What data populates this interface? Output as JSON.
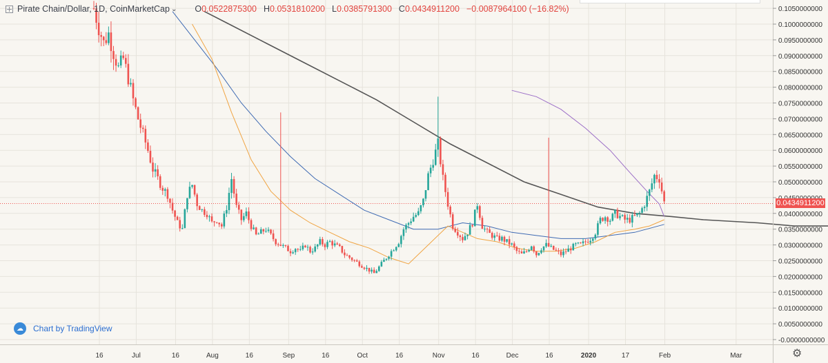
{
  "header": {
    "symbol": "Pirate Chain/Dollar, 1D, CoinMarketCap",
    "open_label": "O",
    "open": "0.0522875300",
    "high_label": "H",
    "high": "0.0531810200",
    "low_label": "L",
    "low": "0.0385791300",
    "close_label": "C",
    "close": "0.0434911200",
    "change": "−0.0087964100 (−16.82%)"
  },
  "watermark": "Chart by TradingView",
  "last_price_label": "0.0434911200",
  "colors": {
    "up": "#26a69a",
    "down": "#ef5350",
    "ma_gray": "#555555",
    "ma_purple": "#9c6fc7",
    "ma_blue": "#3e6ab3",
    "ma_orange": "#f0a442",
    "grid": "#e6e3dc",
    "axis_text": "#333333"
  },
  "chart_data": {
    "type": "candlestick",
    "x_tick_labels": [
      "16",
      "Jul",
      "16",
      "Aug",
      "16",
      "Sep",
      "16",
      "Oct",
      "16",
      "Nov",
      "16",
      "Dec",
      "16",
      "2020",
      "17",
      "Feb",
      "Mar"
    ],
    "y_tick_labels": [
      "-0.0000000000",
      "0.0050000000",
      "0.0100000000",
      "0.0150000000",
      "0.0200000000",
      "0.0250000000",
      "0.0300000000",
      "0.0350000000",
      "0.0400000000",
      "0.0450000000",
      "0.0500000000",
      "0.0550000000",
      "0.0600000000",
      "0.0650000000",
      "0.0700000000",
      "0.0750000000",
      "0.0800000000",
      "0.0850000000",
      "0.0900000000",
      "0.0950000000",
      "0.1000000000",
      "0.1050000000"
    ],
    "ylim": [
      0,
      0.105
    ],
    "last_price": 0.0434911,
    "close_path": [
      [
        0,
        0.105
      ],
      [
        2,
        0.099
      ],
      [
        4,
        0.094
      ],
      [
        6,
        0.097
      ],
      [
        8,
        0.091
      ],
      [
        10,
        0.086
      ],
      [
        12,
        0.089
      ],
      [
        14,
        0.083
      ],
      [
        16,
        0.076
      ],
      [
        18,
        0.07
      ],
      [
        20,
        0.065
      ],
      [
        22,
        0.06
      ],
      [
        24,
        0.054
      ],
      [
        26,
        0.051
      ],
      [
        28,
        0.048
      ],
      [
        30,
        0.046
      ],
      [
        32,
        0.041
      ],
      [
        34,
        0.037
      ],
      [
        36,
        0.035
      ],
      [
        38,
        0.046
      ],
      [
        40,
        0.049
      ],
      [
        42,
        0.043
      ],
      [
        44,
        0.041
      ],
      [
        46,
        0.04
      ],
      [
        48,
        0.037
      ],
      [
        50,
        0.038
      ],
      [
        52,
        0.036
      ],
      [
        54,
        0.042
      ],
      [
        56,
        0.051
      ],
      [
        58,
        0.042
      ],
      [
        60,
        0.038
      ],
      [
        62,
        0.04
      ],
      [
        64,
        0.036
      ],
      [
        66,
        0.033
      ],
      [
        68,
        0.034
      ],
      [
        70,
        0.035
      ],
      [
        72,
        0.033
      ],
      [
        74,
        0.031
      ],
      [
        76,
        0.03
      ],
      [
        78,
        0.029
      ],
      [
        80,
        0.028
      ],
      [
        82,
        0.029
      ],
      [
        84,
        0.028
      ],
      [
        86,
        0.03
      ],
      [
        88,
        0.028
      ],
      [
        90,
        0.029
      ],
      [
        92,
        0.031
      ],
      [
        94,
        0.03
      ],
      [
        96,
        0.031
      ],
      [
        98,
        0.03
      ],
      [
        100,
        0.029
      ],
      [
        102,
        0.027
      ],
      [
        104,
        0.026
      ],
      [
        106,
        0.025
      ],
      [
        108,
        0.024
      ],
      [
        110,
        0.023
      ],
      [
        112,
        0.022
      ],
      [
        114,
        0.021
      ],
      [
        116,
        0.023
      ],
      [
        118,
        0.025
      ],
      [
        120,
        0.027
      ],
      [
        122,
        0.029
      ],
      [
        124,
        0.031
      ],
      [
        126,
        0.035
      ],
      [
        128,
        0.037
      ],
      [
        130,
        0.039
      ],
      [
        132,
        0.04
      ],
      [
        134,
        0.044
      ],
      [
        136,
        0.052
      ],
      [
        138,
        0.057
      ],
      [
        140,
        0.062
      ],
      [
        142,
        0.051
      ],
      [
        144,
        0.043
      ],
      [
        146,
        0.036
      ],
      [
        148,
        0.034
      ],
      [
        150,
        0.032
      ],
      [
        152,
        0.034
      ],
      [
        154,
        0.037
      ],
      [
        156,
        0.043
      ],
      [
        158,
        0.036
      ],
      [
        160,
        0.034
      ],
      [
        162,
        0.033
      ],
      [
        164,
        0.032
      ],
      [
        166,
        0.032
      ],
      [
        168,
        0.031
      ],
      [
        170,
        0.03
      ],
      [
        172,
        0.028
      ],
      [
        174,
        0.027
      ],
      [
        176,
        0.028
      ],
      [
        178,
        0.03
      ],
      [
        180,
        0.027
      ],
      [
        182,
        0.029
      ],
      [
        184,
        0.03
      ],
      [
        186,
        0.029
      ],
      [
        188,
        0.028
      ],
      [
        190,
        0.027
      ],
      [
        192,
        0.028
      ],
      [
        194,
        0.029
      ],
      [
        196,
        0.03
      ],
      [
        198,
        0.03
      ],
      [
        200,
        0.031
      ],
      [
        202,
        0.032
      ],
      [
        204,
        0.034
      ],
      [
        206,
        0.038
      ],
      [
        208,
        0.039
      ],
      [
        210,
        0.038
      ],
      [
        212,
        0.04
      ],
      [
        214,
        0.039
      ],
      [
        216,
        0.038
      ],
      [
        218,
        0.038
      ],
      [
        220,
        0.039
      ],
      [
        222,
        0.04
      ],
      [
        224,
        0.043
      ],
      [
        226,
        0.047
      ],
      [
        228,
        0.052
      ],
      [
        230,
        0.051
      ],
      [
        232,
        0.0435
      ]
    ],
    "x_tick_bars": [
      0,
      15,
      31,
      46,
      61,
      77,
      92,
      107,
      122,
      138,
      153,
      168,
      183,
      199,
      214,
      230,
      259
    ],
    "series": [
      {
        "values": [
          [
            45,
            0.104
          ],
          [
            55,
            0.1
          ],
          [
            70,
            0.094
          ],
          [
            85,
            0.088
          ],
          [
            100,
            0.082
          ],
          [
            115,
            0.076
          ],
          [
            130,
            0.069
          ],
          [
            145,
            0.062
          ],
          [
            160,
            0.056
          ],
          [
            175,
            0.05
          ],
          [
            190,
            0.046
          ],
          [
            205,
            0.042
          ],
          [
            220,
            0.04
          ],
          [
            235,
            0.039
          ],
          [
            248,
            0.038
          ],
          [
            270,
            0.037
          ],
          [
            285,
            0.036
          ],
          [
            300,
            0.036
          ],
          [
            315,
            0.037
          ],
          [
            330,
            0.037
          ]
        ]
      },
      {
        "values": [
          [
            170,
            0.079
          ],
          [
            180,
            0.077
          ],
          [
            190,
            0.073
          ],
          [
            200,
            0.067
          ],
          [
            210,
            0.06
          ],
          [
            218,
            0.053
          ],
          [
            225,
            0.047
          ],
          [
            230,
            0.043
          ],
          [
            232,
            0.039
          ]
        ]
      },
      {
        "values": [
          [
            32,
            0.104
          ],
          [
            40,
            0.096
          ],
          [
            50,
            0.086
          ],
          [
            60,
            0.075
          ],
          [
            70,
            0.066
          ],
          [
            80,
            0.058
          ],
          [
            90,
            0.051
          ],
          [
            100,
            0.046
          ],
          [
            110,
            0.041
          ],
          [
            120,
            0.038
          ],
          [
            130,
            0.035
          ],
          [
            140,
            0.035
          ],
          [
            150,
            0.037
          ],
          [
            160,
            0.036
          ],
          [
            170,
            0.034
          ],
          [
            180,
            0.033
          ],
          [
            190,
            0.032
          ],
          [
            200,
            0.032
          ],
          [
            210,
            0.033
          ],
          [
            220,
            0.034
          ],
          [
            232,
            0.0365
          ]
        ]
      },
      {
        "values": [
          [
            40,
            0.1
          ],
          [
            48,
            0.089
          ],
          [
            56,
            0.072
          ],
          [
            64,
            0.057
          ],
          [
            72,
            0.047
          ],
          [
            80,
            0.041
          ],
          [
            88,
            0.037
          ],
          [
            96,
            0.034
          ],
          [
            104,
            0.031
          ],
          [
            112,
            0.029
          ],
          [
            120,
            0.026
          ],
          [
            128,
            0.024
          ],
          [
            136,
            0.03
          ],
          [
            144,
            0.036
          ],
          [
            150,
            0.034
          ],
          [
            156,
            0.032
          ],
          [
            164,
            0.031
          ],
          [
            172,
            0.029
          ],
          [
            180,
            0.028
          ],
          [
            188,
            0.028
          ],
          [
            196,
            0.029
          ],
          [
            204,
            0.031
          ],
          [
            212,
            0.034
          ],
          [
            220,
            0.035
          ],
          [
            226,
            0.036
          ],
          [
            232,
            0.038
          ]
        ]
      }
    ],
    "spikes": [
      [
        76,
        0.072
      ],
      [
        140,
        0.077
      ],
      [
        185,
        0.064
      ]
    ]
  }
}
